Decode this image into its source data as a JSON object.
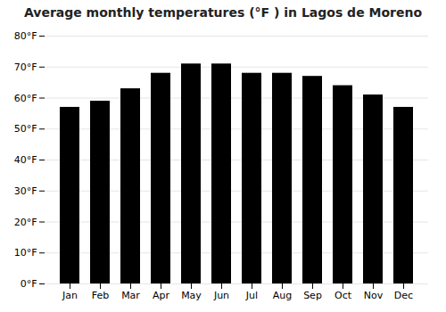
{
  "chart_data": {
    "type": "bar",
    "title": "Average monthly temperatures (°F ) in Lagos de Moreno",
    "categories": [
      "Jan",
      "Feb",
      "Mar",
      "Apr",
      "May",
      "Jun",
      "Jul",
      "Aug",
      "Sep",
      "Oct",
      "Nov",
      "Dec"
    ],
    "values": [
      57,
      59,
      63,
      68,
      71,
      71,
      68,
      68,
      67,
      64,
      61,
      57
    ],
    "ylim": [
      0,
      80
    ],
    "yticks": [
      {
        "value": 0,
        "label": "0°F"
      },
      {
        "value": 10,
        "label": "10°F"
      },
      {
        "value": 20,
        "label": "20°F"
      },
      {
        "value": 30,
        "label": "30°F"
      },
      {
        "value": 40,
        "label": "40°F"
      },
      {
        "value": 50,
        "label": "50°F"
      },
      {
        "value": 60,
        "label": "60°F"
      },
      {
        "value": 70,
        "label": "70°F"
      },
      {
        "value": 80,
        "label": "80°F"
      }
    ],
    "grid": true
  }
}
